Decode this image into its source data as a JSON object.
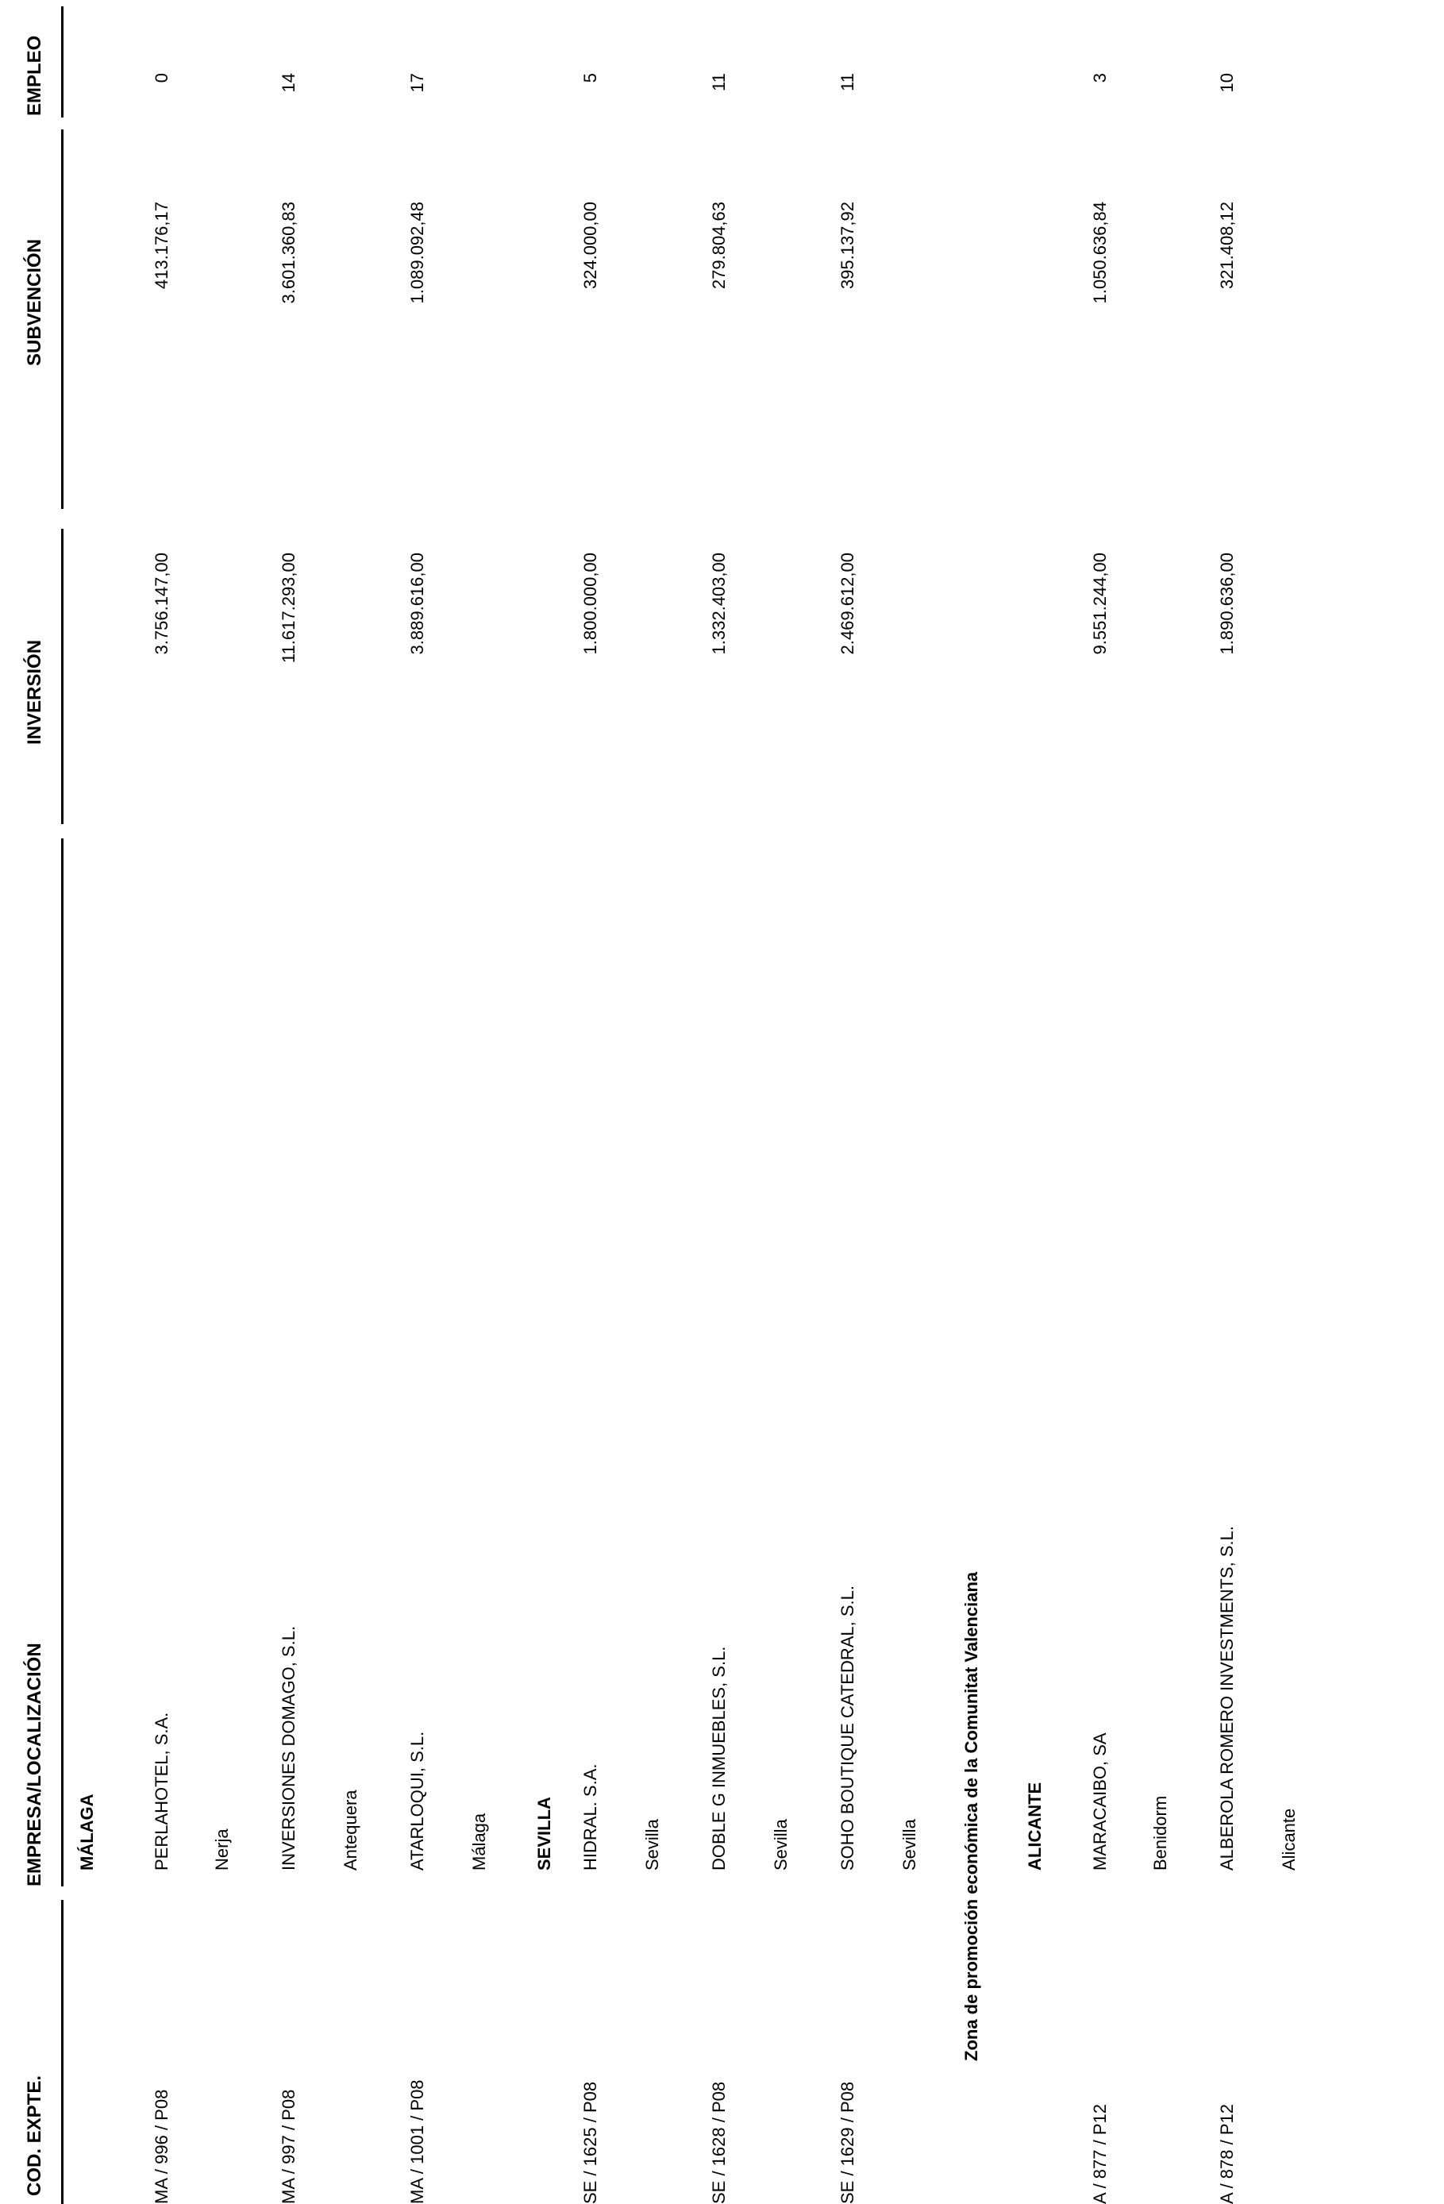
{
  "columns": {
    "cod_expte": "COD. EXPTE.",
    "empresa_localizacion": "EMPRESA/LOCALIZACIÓN",
    "inversion": "INVERSIÓN",
    "subvencion": "SUBVENCIÓN",
    "empleo": "EMPLEO"
  },
  "groups": {
    "malaga": "MÁLAGA",
    "sevilla": "SEVILLA",
    "zone_valencia": "Zona de promoción económica de la Comunitat Valenciana",
    "alicante": "ALICANTE"
  },
  "rows": [
    {
      "cod": "MA /  996  / P08",
      "empresa": "PERLAHOTEL, S.A.",
      "localizacion": "Nerja",
      "inversion": "3.756.147,00",
      "subvencion": "413.176,17",
      "empleo": "0"
    },
    {
      "cod": "MA /  997  / P08",
      "empresa": "INVERSIONES DOMAGO, S.L.",
      "localizacion": "Antequera",
      "inversion": "11.617.293,00",
      "subvencion": "3.601.360,83",
      "empleo": "14"
    },
    {
      "cod": "MA / 1001  / P08",
      "empresa": "ATARLOQUI, S.L.",
      "localizacion": "Málaga",
      "inversion": "3.889.616,00",
      "subvencion": "1.089.092,48",
      "empleo": "17"
    },
    {
      "cod": "SE / 1625  / P08",
      "empresa": "HIDRAL. S.A.",
      "localizacion": "Sevilla",
      "inversion": "1.800.000,00",
      "subvencion": "324.000,00",
      "empleo": "5"
    },
    {
      "cod": "SE / 1628  / P08",
      "empresa": "DOBLE G INMUEBLES, S.L.",
      "localizacion": "Sevilla",
      "inversion": "1.332.403,00",
      "subvencion": "279.804,63",
      "empleo": "11"
    },
    {
      "cod": "SE / 1629  / P08",
      "empresa": "SOHO BOUTIQUE CATEDRAL, S.L.",
      "localizacion": "Sevilla",
      "inversion": "2.469.612,00",
      "subvencion": "395.137,92",
      "empleo": "11"
    },
    {
      "cod": "A /  877  / P12",
      "empresa": "MARACAIBO, SA",
      "localizacion": "Benidorm",
      "inversion": "9.551.244,00",
      "subvencion": "1.050.636,84",
      "empleo": "3"
    },
    {
      "cod": "A /  878  / P12",
      "empresa": "ALBEROLA ROMERO INVESTMENTS, S.L.",
      "localizacion": "Alicante",
      "inversion": "1.890.636,00",
      "subvencion": "321.408,12",
      "empleo": "10"
    }
  ]
}
